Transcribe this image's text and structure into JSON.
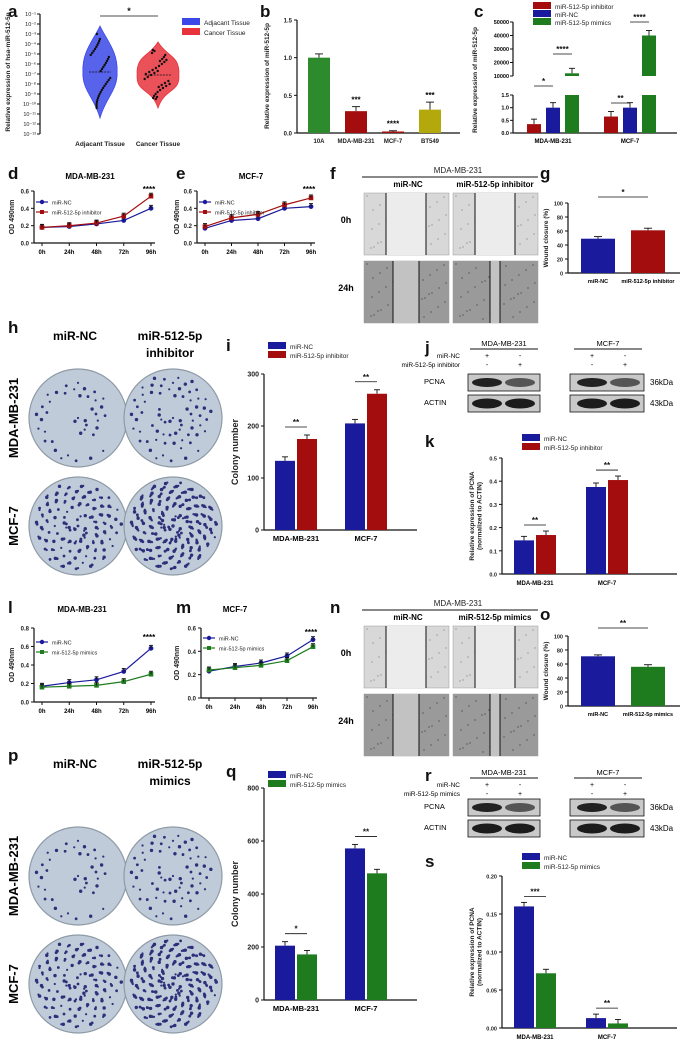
{
  "colors": {
    "blue": "#1a1a9c",
    "red": "#a40d0d",
    "green": "#1e7b1e",
    "violin_blue": "#3b48e8",
    "violin_red": "#e8323c"
  },
  "panel_labels": [
    "a",
    "b",
    "c",
    "d",
    "e",
    "f",
    "g",
    "h",
    "i",
    "j",
    "k",
    "l",
    "m",
    "n",
    "o",
    "p",
    "q",
    "r",
    "s"
  ],
  "chart_data": [
    {
      "id": "a",
      "type": "violin",
      "title": "",
      "ylabel": "Relative expression of hsa-miR-512-5p",
      "categories": [
        "Adjacant Tissue",
        "Cancer Tissue"
      ],
      "yticks": [
        "10⁻¹³",
        "10⁻¹²",
        "10⁻¹¹",
        "10⁻¹⁰",
        "10⁻⁹",
        "10⁻⁸",
        "10⁻⁷",
        "10⁻⁶",
        "10⁻⁵",
        "10⁻⁴",
        "10⁻³",
        "10⁻²",
        "10⁻¹"
      ],
      "legend": [
        "Adjacant Tissue",
        "Cancer Tissue"
      ],
      "significance": "*"
    },
    {
      "id": "b",
      "type": "bar",
      "ylabel": "Relative expression of miR-512-5p",
      "categories": [
        "10A",
        "MDA-MB-231",
        "MCF-7",
        "BT549"
      ],
      "values": [
        1.0,
        0.29,
        0.02,
        0.31
      ],
      "errors": [
        0.05,
        0.06,
        0.01,
        0.1
      ],
      "ylim": [
        0,
        1.5
      ],
      "yticks": [
        "0.0",
        "0.5",
        "1.0",
        "1.5"
      ],
      "significance": [
        "",
        "***",
        "****",
        "***"
      ]
    },
    {
      "id": "c",
      "type": "bar",
      "ylabel": "Relative expression of miR-512-5p",
      "categories": [
        "MDA-MB-231",
        "MCF-7"
      ],
      "series": [
        {
          "name": "miR-512-5p inhibitor",
          "values": [
            0.35,
            0.65
          ]
        },
        {
          "name": "miR-NC",
          "values": [
            1.0,
            1.0
          ]
        },
        {
          "name": "miR-512-5p mimics",
          "values": [
            12000,
            40000
          ]
        }
      ],
      "yticks_low": [
        "0.0",
        "0.5",
        "1.0",
        "1.5"
      ],
      "yticks_high": [
        "10000",
        "20000",
        "30000",
        "40000",
        "50000"
      ],
      "significance": [
        "*",
        "****",
        "**",
        "****"
      ]
    },
    {
      "id": "d",
      "type": "line",
      "title": "MDA-MB-231",
      "ylabel": "OD 490nm",
      "x": [
        "0h",
        "24h",
        "48h",
        "72h",
        "96h"
      ],
      "series": [
        {
          "name": "miR-NC",
          "values": [
            0.18,
            0.19,
            0.22,
            0.26,
            0.4
          ]
        },
        {
          "name": "miR-512-5p inhibitor",
          "values": [
            0.18,
            0.2,
            0.23,
            0.31,
            0.54
          ]
        }
      ],
      "ylim": [
        0,
        0.6
      ],
      "yticks": [
        "0.0",
        "0.2",
        "0.4",
        "0.6"
      ],
      "significance": "****"
    },
    {
      "id": "e",
      "type": "line",
      "title": "MCF-7",
      "ylabel": "OD 490nm",
      "x": [
        "0h",
        "24h",
        "48h",
        "72h",
        "96h"
      ],
      "series": [
        {
          "name": "miR-NC",
          "values": [
            0.17,
            0.26,
            0.28,
            0.4,
            0.42
          ]
        },
        {
          "name": "miR-512-5p inhibitor",
          "values": [
            0.19,
            0.29,
            0.33,
            0.44,
            0.52
          ]
        }
      ],
      "ylim": [
        0,
        0.6
      ],
      "yticks": [
        "0.0",
        "0.2",
        "0.4",
        "0.6"
      ],
      "significance": "****"
    },
    {
      "id": "g",
      "type": "bar",
      "ylabel": "Wound closure (%)",
      "categories": [
        "miR-NC",
        "miR-512-5p inhibitor"
      ],
      "values": [
        49,
        61
      ],
      "errors": [
        3,
        3
      ],
      "ylim": [
        0,
        100
      ],
      "yticks": [
        "0",
        "20",
        "40",
        "60",
        "80",
        "100"
      ],
      "significance": "*"
    },
    {
      "id": "i",
      "type": "bar",
      "ylabel": "Colony number",
      "categories": [
        "MDA-MB-231",
        "MCF-7"
      ],
      "series": [
        {
          "name": "miR-NC",
          "values": [
            133,
            205
          ]
        },
        {
          "name": "miR-512-5p inhibitor",
          "values": [
            175,
            262
          ]
        }
      ],
      "ylim": [
        0,
        300
      ],
      "yticks": [
        "0",
        "100",
        "200",
        "300"
      ],
      "significance": [
        "**",
        "**"
      ]
    },
    {
      "id": "k",
      "type": "bar",
      "ylabel": "Relative expression of PCNA (normalized to ACTIN)",
      "categories": [
        "MDA-MB-231",
        "MCF-7"
      ],
      "series": [
        {
          "name": "miR-NC",
          "values": [
            0.145,
            0.375
          ]
        },
        {
          "name": "miR-512-5p inhibitor",
          "values": [
            0.168,
            0.405
          ]
        }
      ],
      "ylim": [
        0,
        0.5
      ],
      "yticks": [
        "0.0",
        "0.1",
        "0.2",
        "0.3",
        "0.4",
        "0.5"
      ],
      "significance": [
        "**",
        "**"
      ]
    },
    {
      "id": "l",
      "type": "line",
      "title": "MDA-MB-231",
      "ylabel": "OD 490nm",
      "x": [
        "0h",
        "24h",
        "48h",
        "72h",
        "96h"
      ],
      "series": [
        {
          "name": "miR-NC",
          "values": [
            0.17,
            0.21,
            0.24,
            0.33,
            0.58
          ]
        },
        {
          "name": "mir-512-5p mimics",
          "values": [
            0.16,
            0.17,
            0.18,
            0.22,
            0.3
          ]
        }
      ],
      "ylim": [
        0,
        0.8
      ],
      "yticks": [
        "0.0",
        "0.2",
        "0.4",
        "0.6",
        "0.8"
      ],
      "significance": "****"
    },
    {
      "id": "m",
      "type": "line",
      "title": "MCF-7",
      "ylabel": "OD 490nm",
      "x": [
        "0h",
        "24h",
        "48h",
        "72h",
        "96h"
      ],
      "series": [
        {
          "name": "miR-NC",
          "values": [
            0.23,
            0.27,
            0.3,
            0.36,
            0.5
          ]
        },
        {
          "name": "mir-512-5p mimics",
          "values": [
            0.24,
            0.26,
            0.28,
            0.32,
            0.44
          ]
        }
      ],
      "ylim": [
        0,
        0.6
      ],
      "yticks": [
        "0.0",
        "0.2",
        "0.4",
        "0.6"
      ],
      "significance": "****"
    },
    {
      "id": "o",
      "type": "bar",
      "ylabel": "Wound closure (%)",
      "categories": [
        "miR-NC",
        "miR-512-5p mimics"
      ],
      "values": [
        71,
        56
      ],
      "errors": [
        2,
        3
      ],
      "ylim": [
        0,
        100
      ],
      "yticks": [
        "0",
        "20",
        "40",
        "60",
        "80",
        "100"
      ],
      "significance": "**"
    },
    {
      "id": "q",
      "type": "bar",
      "ylabel": "Colony number",
      "categories": [
        "MDA-MB-231",
        "MCF-7"
      ],
      "series": [
        {
          "name": "miR-NC",
          "values": [
            205,
            572
          ]
        },
        {
          "name": "miR-512-5p mimics",
          "values": [
            172,
            478
          ]
        }
      ],
      "ylim": [
        0,
        800
      ],
      "yticks": [
        "0",
        "200",
        "400",
        "600",
        "800"
      ],
      "significance": [
        "*",
        "**"
      ]
    },
    {
      "id": "s",
      "type": "bar",
      "ylabel": "Relative expression of PCNA (normalized to ACTIN)",
      "categories": [
        "MDA-MB-231",
        "MCF-7"
      ],
      "series": [
        {
          "name": "miR-NC",
          "values": [
            0.16,
            0.013
          ]
        },
        {
          "name": "miR-512-5p mimics",
          "values": [
            0.072,
            0.006
          ]
        }
      ],
      "ylim": [
        0,
        0.2
      ],
      "yticks": [
        "0.00",
        "0.05",
        "0.10",
        "0.15",
        "0.20"
      ],
      "significance": [
        "***",
        "**"
      ]
    }
  ],
  "wound_f": {
    "header": "MDA-MB-231",
    "columns": [
      "miR-NC",
      "miR-512-5p inhibitor"
    ],
    "rows": [
      "0h",
      "24h"
    ]
  },
  "wound_n": {
    "header": "MDA-MB-231",
    "columns": [
      "miR-NC",
      "miR-512-5p mimics"
    ],
    "rows": [
      "0h",
      "24h"
    ]
  },
  "colony_h": {
    "columns": [
      "miR-NC",
      "miR-512-5p inhibitor"
    ],
    "rows": [
      "MDA-MB-231",
      "MCF-7"
    ]
  },
  "colony_p": {
    "columns": [
      "miR-NC",
      "miR-512-5p mimics"
    ],
    "rows": [
      "MDA-MB-231",
      "MCF-7"
    ]
  },
  "blot_j": {
    "cells": [
      "MDA-MB-231",
      "MCF-7"
    ],
    "row_labels": [
      "miR-NC",
      "miR-512-5p inhibitor"
    ],
    "signs": [
      [
        "+",
        "-",
        "+",
        "-"
      ],
      [
        "-",
        "+",
        "-",
        "+"
      ]
    ],
    "proteins": [
      "PCNA",
      "ACTIN"
    ],
    "sizes": [
      "36kDa",
      "43kDa"
    ]
  },
  "blot_r": {
    "cells": [
      "MDA-MB-231",
      "MCF-7"
    ],
    "row_labels": [
      "miR-NC",
      "miR-512-5p mimics"
    ],
    "signs": [
      [
        "+",
        "-",
        "+",
        "-"
      ],
      [
        "-",
        "+",
        "-",
        "+"
      ]
    ],
    "proteins": [
      "PCNA",
      "ACTIN"
    ],
    "sizes": [
      "36kDa",
      "43kDa"
    ]
  }
}
